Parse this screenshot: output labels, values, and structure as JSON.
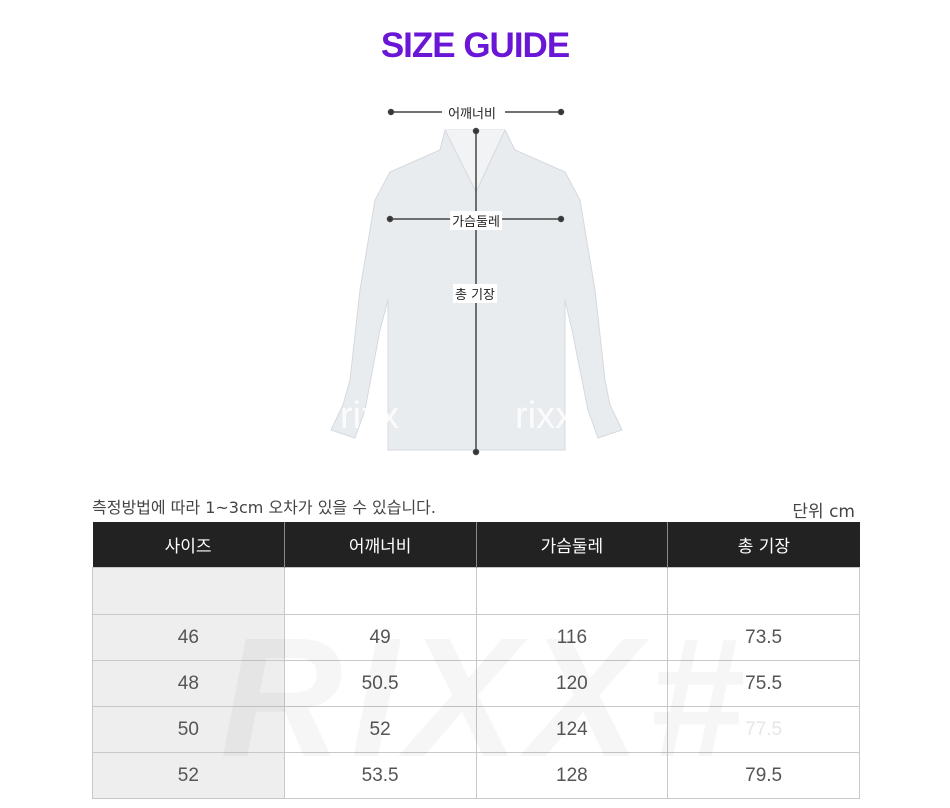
{
  "title": "SIZE GUIDE",
  "diagram": {
    "shoulder_label": "어깨너비",
    "chest_label": "가슴둘레",
    "length_label": "총 기장",
    "watermark": "rixx"
  },
  "note": "측정방법에 따라 1~3cm 오차가 있을 수 있습니다.",
  "unit": "단위 cm",
  "table": {
    "headers": [
      "사이즈",
      "어깨너비",
      "가슴둘레",
      "총 기장"
    ],
    "rows": [
      [
        "",
        "",
        "",
        ""
      ],
      [
        "46",
        "49",
        "116",
        "73.5"
      ],
      [
        "48",
        "50.5",
        "120",
        "75.5"
      ],
      [
        "50",
        "52",
        "124",
        "77.5"
      ],
      [
        "52",
        "53.5",
        "128",
        "79.5"
      ]
    ]
  },
  "colors": {
    "title": "#6a16d6",
    "header_bg": "#222222",
    "size_col_bg": "#eeeeee"
  }
}
